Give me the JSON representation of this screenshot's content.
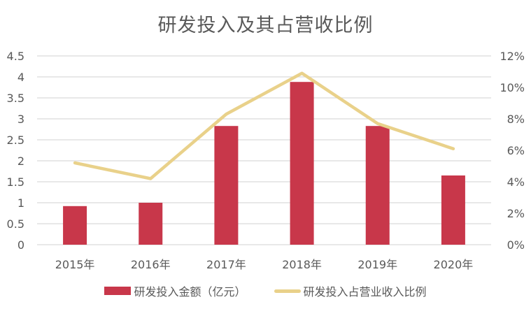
{
  "chart_data": {
    "type": "bar+line",
    "title": "研发投入及其占营收比例",
    "categories": [
      "2015年",
      "2016年",
      "2017年",
      "2018年",
      "2019年",
      "2020年"
    ],
    "series": [
      {
        "name": "研发投入金额（亿元）",
        "type": "bar",
        "axis": "left",
        "color": "#C8374A",
        "values": [
          0.92,
          1.0,
          2.83,
          3.88,
          2.83,
          1.65
        ]
      },
      {
        "name": "研发投入占营业收入比例",
        "type": "line",
        "axis": "right",
        "color": "#E9D18A",
        "values": [
          5.2,
          4.2,
          8.3,
          10.9,
          7.7,
          6.1
        ]
      }
    ],
    "left_axis": {
      "ylim": [
        0,
        4.5
      ],
      "ticks": [
        "0",
        "0.5",
        "1",
        "1.5",
        "2",
        "2.5",
        "3",
        "3.5",
        "4",
        "4.5"
      ]
    },
    "right_axis": {
      "ylim": [
        0,
        12
      ],
      "ticks": [
        "0%",
        "2%",
        "4%",
        "6%",
        "8%",
        "10%",
        "12%"
      ]
    },
    "grid": true,
    "legend_position": "bottom"
  }
}
